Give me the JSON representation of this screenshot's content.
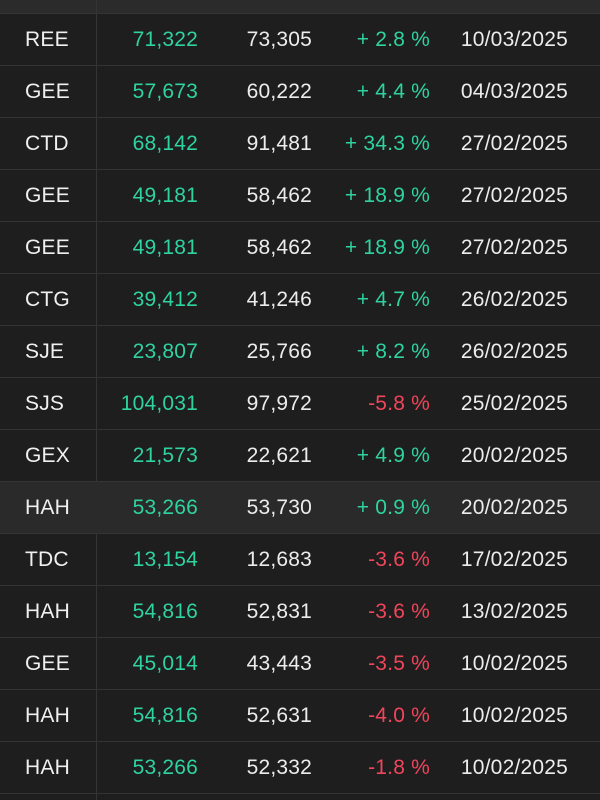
{
  "colors": {
    "background": "#1e1e1e",
    "row_highlight": "#2a2a2a",
    "positive": "#2ed3a0",
    "negative": "#f0455a",
    "divider": "#343434"
  },
  "rows": [
    {
      "ticker": "REE",
      "price_in": "71,322",
      "price_now": "73,305",
      "change": "+ 2.8 %",
      "direction": "pos",
      "date": "10/03/2025",
      "highlighted": false
    },
    {
      "ticker": "GEE",
      "price_in": "57,673",
      "price_now": "60,222",
      "change": "+ 4.4 %",
      "direction": "pos",
      "date": "04/03/2025",
      "highlighted": false
    },
    {
      "ticker": "CTD",
      "price_in": "68,142",
      "price_now": "91,481",
      "change": "+ 34.3 %",
      "direction": "pos",
      "date": "27/02/2025",
      "highlighted": false
    },
    {
      "ticker": "GEE",
      "price_in": "49,181",
      "price_now": "58,462",
      "change": "+ 18.9 %",
      "direction": "pos",
      "date": "27/02/2025",
      "highlighted": false
    },
    {
      "ticker": "GEE",
      "price_in": "49,181",
      "price_now": "58,462",
      "change": "+ 18.9 %",
      "direction": "pos",
      "date": "27/02/2025",
      "highlighted": false
    },
    {
      "ticker": "CTG",
      "price_in": "39,412",
      "price_now": "41,246",
      "change": "+ 4.7 %",
      "direction": "pos",
      "date": "26/02/2025",
      "highlighted": false
    },
    {
      "ticker": "SJE",
      "price_in": "23,807",
      "price_now": "25,766",
      "change": "+ 8.2 %",
      "direction": "pos",
      "date": "26/02/2025",
      "highlighted": false
    },
    {
      "ticker": "SJS",
      "price_in": "104,031",
      "price_now": "97,972",
      "change": "-5.8 %",
      "direction": "neg",
      "date": "25/02/2025",
      "highlighted": false
    },
    {
      "ticker": "GEX",
      "price_in": "21,573",
      "price_now": "22,621",
      "change": "+ 4.9 %",
      "direction": "pos",
      "date": "20/02/2025",
      "highlighted": false
    },
    {
      "ticker": "HAH",
      "price_in": "53,266",
      "price_now": "53,730",
      "change": "+ 0.9 %",
      "direction": "pos",
      "date": "20/02/2025",
      "highlighted": true
    },
    {
      "ticker": "TDC",
      "price_in": "13,154",
      "price_now": "12,683",
      "change": "-3.6 %",
      "direction": "neg",
      "date": "17/02/2025",
      "highlighted": false
    },
    {
      "ticker": "HAH",
      "price_in": "54,816",
      "price_now": "52,831",
      "change": "-3.6 %",
      "direction": "neg",
      "date": "13/02/2025",
      "highlighted": false
    },
    {
      "ticker": "GEE",
      "price_in": "45,014",
      "price_now": "43,443",
      "change": "-3.5 %",
      "direction": "neg",
      "date": "10/02/2025",
      "highlighted": false
    },
    {
      "ticker": "HAH",
      "price_in": "54,816",
      "price_now": "52,631",
      "change": "-4.0 %",
      "direction": "neg",
      "date": "10/02/2025",
      "highlighted": false
    },
    {
      "ticker": "HAH",
      "price_in": "53,266",
      "price_now": "52,332",
      "change": "-1.8 %",
      "direction": "neg",
      "date": "10/02/2025",
      "highlighted": false
    }
  ]
}
